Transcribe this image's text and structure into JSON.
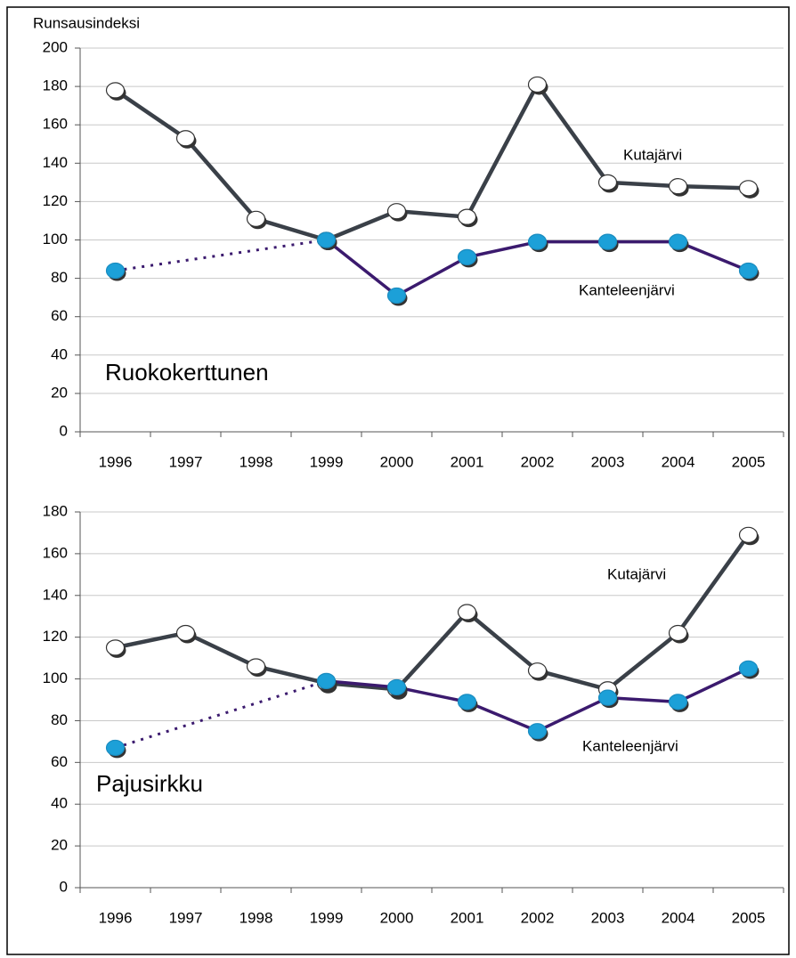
{
  "chart_data": [
    {
      "type": "line",
      "title": "Ruokokerttunen",
      "ylabel": "Runsausindeksi",
      "categories": [
        "1996",
        "1997",
        "1998",
        "1999",
        "2000",
        "2001",
        "2002",
        "2003",
        "2004",
        "2005"
      ],
      "series": [
        {
          "name": "Kutajärvi",
          "color": "#3a4048",
          "marker_color": "#ffffff",
          "values": [
            178,
            153,
            111,
            100,
            115,
            112,
            181,
            130,
            128,
            127
          ]
        },
        {
          "name": "Kanteleenjärvi",
          "color": "#3b1a6e",
          "marker_color": "#1ca0d8",
          "values": [
            84,
            null,
            null,
            100,
            71,
            91,
            99,
            99,
            99,
            84
          ]
        }
      ],
      "ylim": [
        0,
        200
      ],
      "yticks": [
        0,
        20,
        40,
        60,
        80,
        100,
        120,
        140,
        160,
        180,
        200
      ],
      "grid": true,
      "gaps": "dotted"
    },
    {
      "type": "line",
      "title": "Pajusirkku",
      "categories": [
        "1996",
        "1997",
        "1998",
        "1999",
        "2000",
        "2001",
        "2002",
        "2003",
        "2004",
        "2005"
      ],
      "series": [
        {
          "name": "Kutajärvi",
          "color": "#3a4048",
          "marker_color": "#ffffff",
          "values": [
            115,
            122,
            106,
            98,
            95,
            132,
            104,
            95,
            122,
            169
          ]
        },
        {
          "name": "Kanteleenjärvi",
          "color": "#3b1a6e",
          "marker_color": "#1ca0d8",
          "values": [
            67,
            null,
            null,
            99,
            96,
            89,
            75,
            91,
            89,
            105
          ]
        }
      ],
      "ylim": [
        0,
        180
      ],
      "yticks": [
        0,
        20,
        40,
        60,
        80,
        100,
        120,
        140,
        160,
        180
      ],
      "grid": true,
      "gaps": "dotted"
    }
  ]
}
